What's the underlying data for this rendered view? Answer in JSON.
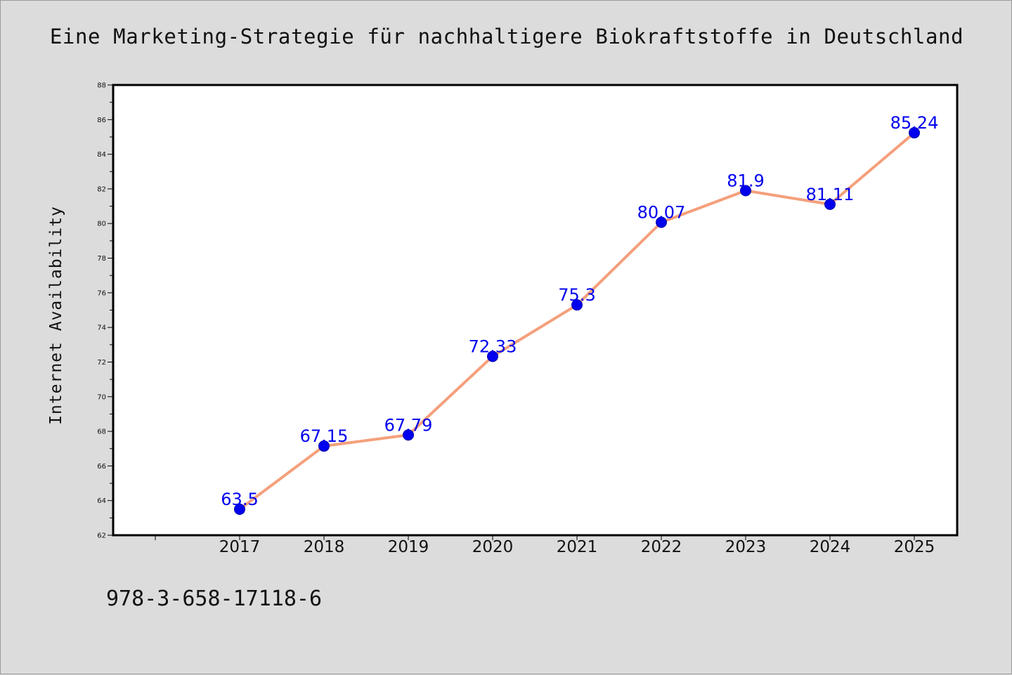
{
  "chart_data": {
    "type": "line",
    "title": "Eine Marketing-Strategie für nachhaltigere Biokraftstoffe in Deutschland",
    "xlabel": "",
    "ylabel": "Internet Availability",
    "categories": [
      "2017",
      "2018",
      "2019",
      "2020",
      "2021",
      "2022",
      "2023",
      "2024",
      "2025"
    ],
    "series": [
      {
        "values": [
          63.5,
          67.15,
          67.79,
          72.33,
          75.3,
          80.07,
          81.9,
          81.11,
          85.24
        ],
        "labels": [
          "63.5",
          "67.15",
          "67.79",
          "72.33",
          "75.3",
          "80.07",
          "81.9",
          "81.11",
          "85.24"
        ]
      }
    ],
    "ylim": [
      62,
      88
    ],
    "yticks": [
      "62",
      "64",
      "66",
      "68",
      "70",
      "72",
      "74",
      "76",
      "78",
      "80",
      "82",
      "84",
      "86",
      "88"
    ],
    "grid": false,
    "legend": "none",
    "colors": {
      "line": "#f4a07c",
      "marker": "#0000ee",
      "data_label": "#0000ee",
      "background": "#dcdcdc",
      "plot_background": "#ffffff"
    }
  },
  "footer": {
    "code": "978-3-658-17118-6"
  }
}
